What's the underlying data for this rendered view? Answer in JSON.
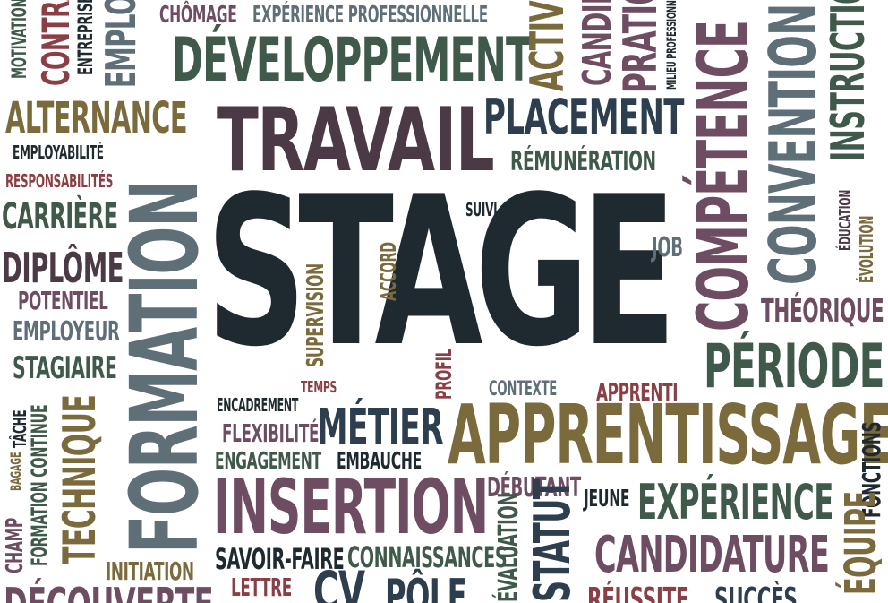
{
  "words": {
    "stage": "STAGE",
    "travail": "TRAVAIL",
    "formation": "FORMATION",
    "developpement": "DÉVELOPPEMENT",
    "apprentissage": "APPRENTISSAGE",
    "insertion": "INSERTION",
    "competence": "COMPÉTENCE",
    "convention": "CONVENTION",
    "instruction": "INSTRUCTION",
    "placement": "PLACEMENT",
    "remuneration": "RÉMUNÉRATION",
    "periode": "PÉRIODE",
    "metier": "MÉTIER",
    "experience": "EXPÉRIENCE",
    "candidature": "CANDIDATURE",
    "alternance": "ALTERNANCE",
    "carriere": "CARRIÈRE",
    "diplome": "DIPLÔME",
    "potentiel": "POTENTIEL",
    "employeur": "EMPLOYEUR",
    "stagiaire": "STAGIAIRE",
    "employabilite": "EMPLOYABILITÉ",
    "responsabilites": "RESPONSABILITÉS",
    "chomage": "CHÔMAGE",
    "experience_pro": "EXPÉRIENCE PROFESSIONNELLE",
    "technique": "TECHNIQUE",
    "formation_continue": "FORMATION CONTINUE",
    "tache": "TÂCHE",
    "bagage": "BAGAGE",
    "champ": "CHAMP",
    "initiation": "INITIATION",
    "savoir_faire": "SAVOIR-FAIRE",
    "connaissances": "CONNAISSANCES",
    "lettre": "LETTRE",
    "cv": "CV",
    "pole": "PÔLE",
    "decouverte": "DÉCOUVERTE",
    "debutant": "DÉBUTANT",
    "jeune": "JEUNE",
    "fonctions": "FONCTIONS",
    "equipe": "ÉQUIPE",
    "reussite": "RÉUSSITE",
    "succes": "SUCCÈS",
    "statut": "STATUT",
    "evaluation": "ÉVALUATION",
    "encadrement": "ENCADREMENT",
    "flexibilite": "FLEXIBILITÉ",
    "engagement": "ENGAGEMENT",
    "embauche": "EMBAUCHE",
    "temps": "TEMPS",
    "profil": "PROFIL",
    "contexte": "CONTEXTE",
    "apprenti": "APPRENTI",
    "supervision": "SUPERVISION",
    "accord": "ACCORD",
    "suivi": "SUIVI",
    "job": "JOB",
    "theorique": "THÉORIQUE",
    "education": "ÉDUCATION",
    "evolution": "ÉVOLUTION",
    "pratique": "PRATIQUE",
    "activite": "ACTIVITÉ",
    "candidat": "CANDIDAT",
    "milieu_pro": "MILIEU PROFESSIONNEL",
    "motivation": "MOTIVATION",
    "contrat": "CONTRAT",
    "entreprise": "ENTREPRISE",
    "emploi": "EMPLOI"
  }
}
